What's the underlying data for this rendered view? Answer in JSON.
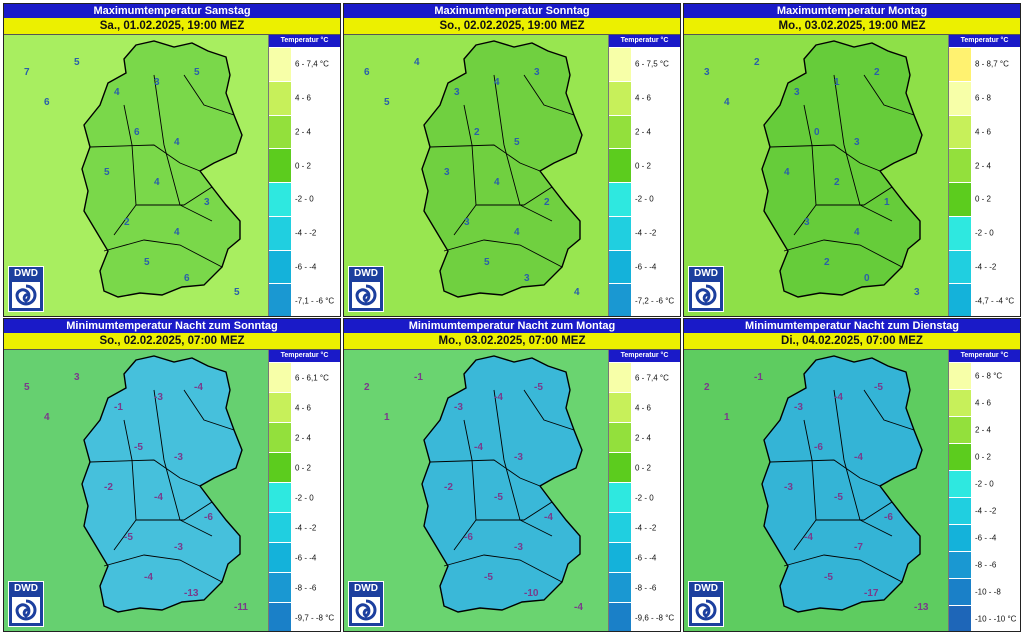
{
  "panels": [
    {
      "title": "Maximumtemperatur Samstag",
      "date": "Sa., 01.02.2025, 19:00 MEZ",
      "legend_title": "Temperatur °C",
      "legend": [
        "6 - 7,4 °C",
        "4 - 6",
        "2 - 4",
        "0 - 2",
        "-2 - 0",
        "-4 - -2",
        "-6 - -4",
        "-7,1 - -6 °C"
      ],
      "colors": [
        "#f7ffa8",
        "#c7f05a",
        "#93e03c",
        "#5ccc1e",
        "#2ee8e0",
        "#20cfe0",
        "#14b2da",
        "#1a98d2"
      ],
      "sea": "#a8ee60",
      "land": "#7ad84a",
      "marks": [
        "7",
        "6",
        "5",
        "4",
        "3",
        "5",
        "6",
        "4",
        "5",
        "4",
        "3",
        "2",
        "4",
        "5",
        "6",
        "5"
      ],
      "mark_color": "#2a60a8"
    },
    {
      "title": "Maximumtemperatur Sonntag",
      "date": "So., 02.02.2025, 19:00 MEZ",
      "legend_title": "Temperatur °C",
      "legend": [
        "6 - 7,5 °C",
        "4 - 6",
        "2 - 4",
        "0 - 2",
        "-2 - 0",
        "-4 - -2",
        "-6 - -4",
        "-7,2 - -6 °C"
      ],
      "colors": [
        "#f7ffa8",
        "#c7f05a",
        "#93e03c",
        "#5ccc1e",
        "#2ee8e0",
        "#20cfe0",
        "#14b2da",
        "#1a98d2"
      ],
      "sea": "#98e650",
      "land": "#70d040",
      "marks": [
        "6",
        "5",
        "4",
        "3",
        "4",
        "3",
        "2",
        "5",
        "3",
        "4",
        "2",
        "3",
        "4",
        "5",
        "3",
        "4"
      ],
      "mark_color": "#2a60a8"
    },
    {
      "title": "Maximumtemperatur Montag",
      "date": "Mo., 03.02.2025, 19:00 MEZ",
      "legend_title": "Temperatur °C",
      "legend": [
        "8 - 8,7 °C",
        "6 - 8",
        "4 - 6",
        "2 - 4",
        "0 - 2",
        "-2 - 0",
        "-4 - -2",
        "-4,7 - -4 °C"
      ],
      "colors": [
        "#fff270",
        "#f7ffa8",
        "#c7f05a",
        "#93e03c",
        "#5ccc1e",
        "#2ee8e0",
        "#20cfe0",
        "#14b2da"
      ],
      "sea": "#8ee048",
      "land": "#66cc3a",
      "marks": [
        "3",
        "4",
        "2",
        "3",
        "1",
        "2",
        "0",
        "3",
        "4",
        "2",
        "1",
        "3",
        "4",
        "2",
        "0",
        "3"
      ],
      "mark_color": "#2a60a8"
    },
    {
      "title": "Minimumtemperatur Nacht zum Sonntag",
      "date": "So., 02.02.2025, 07:00 MEZ",
      "legend_title": "Temperatur °C",
      "legend": [
        "6 - 6,1 °C",
        "4 - 6",
        "2 - 4",
        "0 - 2",
        "-2 - 0",
        "-4 - -2",
        "-6 - -4",
        "-8 - -6",
        "-9,7 - -8 °C"
      ],
      "colors": [
        "#f7ffa8",
        "#c7f05a",
        "#93e03c",
        "#5ccc1e",
        "#2ee8e0",
        "#20cfe0",
        "#14b2da",
        "#1a98d2",
        "#1a80c8"
      ],
      "sea": "#66d070",
      "land": "#46c0dc",
      "marks": [
        "5",
        "4",
        "3",
        "-1",
        "-3",
        "-4",
        "-5",
        "-3",
        "-2",
        "-4",
        "-6",
        "-5",
        "-3",
        "-4",
        "-13",
        "-11"
      ],
      "mark_color": "#7a3a8a"
    },
    {
      "title": "Minimumtemperatur Nacht zum Montag",
      "date": "Mo., 03.02.2025, 07:00 MEZ",
      "legend_title": "Temperatur °C",
      "legend": [
        "6 - 7,4 °C",
        "4 - 6",
        "2 - 4",
        "0 - 2",
        "-2 - 0",
        "-4 - -2",
        "-6 - -4",
        "-8 - -6",
        "-9,6 - -8 °C"
      ],
      "colors": [
        "#f7ffa8",
        "#c7f05a",
        "#93e03c",
        "#5ccc1e",
        "#2ee8e0",
        "#20cfe0",
        "#14b2da",
        "#1a98d2",
        "#1a80c8"
      ],
      "sea": "#6ad470",
      "land": "#3ab8d8",
      "marks": [
        "2",
        "1",
        "-1",
        "-3",
        "-4",
        "-5",
        "-4",
        "-3",
        "-2",
        "-5",
        "-4",
        "-6",
        "-3",
        "-5",
        "-10",
        "-4"
      ],
      "mark_color": "#7a3a8a"
    },
    {
      "title": "Minimumtemperatur Nacht zum Dienstag",
      "date": "Di., 04.02.2025, 07:00 MEZ",
      "legend_title": "Temperatur °C",
      "legend": [
        "6 - 8 °C",
        "4 - 6",
        "2 - 4",
        "0 - 2",
        "-2 - 0",
        "-4 - -2",
        "-6 - -4",
        "-8 - -6",
        "-10 - -8",
        "-10 - -10 °C"
      ],
      "colors": [
        "#f7ffa8",
        "#c7f05a",
        "#93e03c",
        "#5ccc1e",
        "#2ee8e0",
        "#20cfe0",
        "#14b2da",
        "#1a98d2",
        "#1a80c8",
        "#1e66b8"
      ],
      "sea": "#5ecc60",
      "land": "#34b4d6",
      "marks": [
        "2",
        "1",
        "-1",
        "-3",
        "-4",
        "-5",
        "-6",
        "-4",
        "-3",
        "-5",
        "-6",
        "-4",
        "-7",
        "-5",
        "-17",
        "-13"
      ],
      "mark_color": "#7a3a8a"
    }
  ],
  "logo_text": "DWD"
}
